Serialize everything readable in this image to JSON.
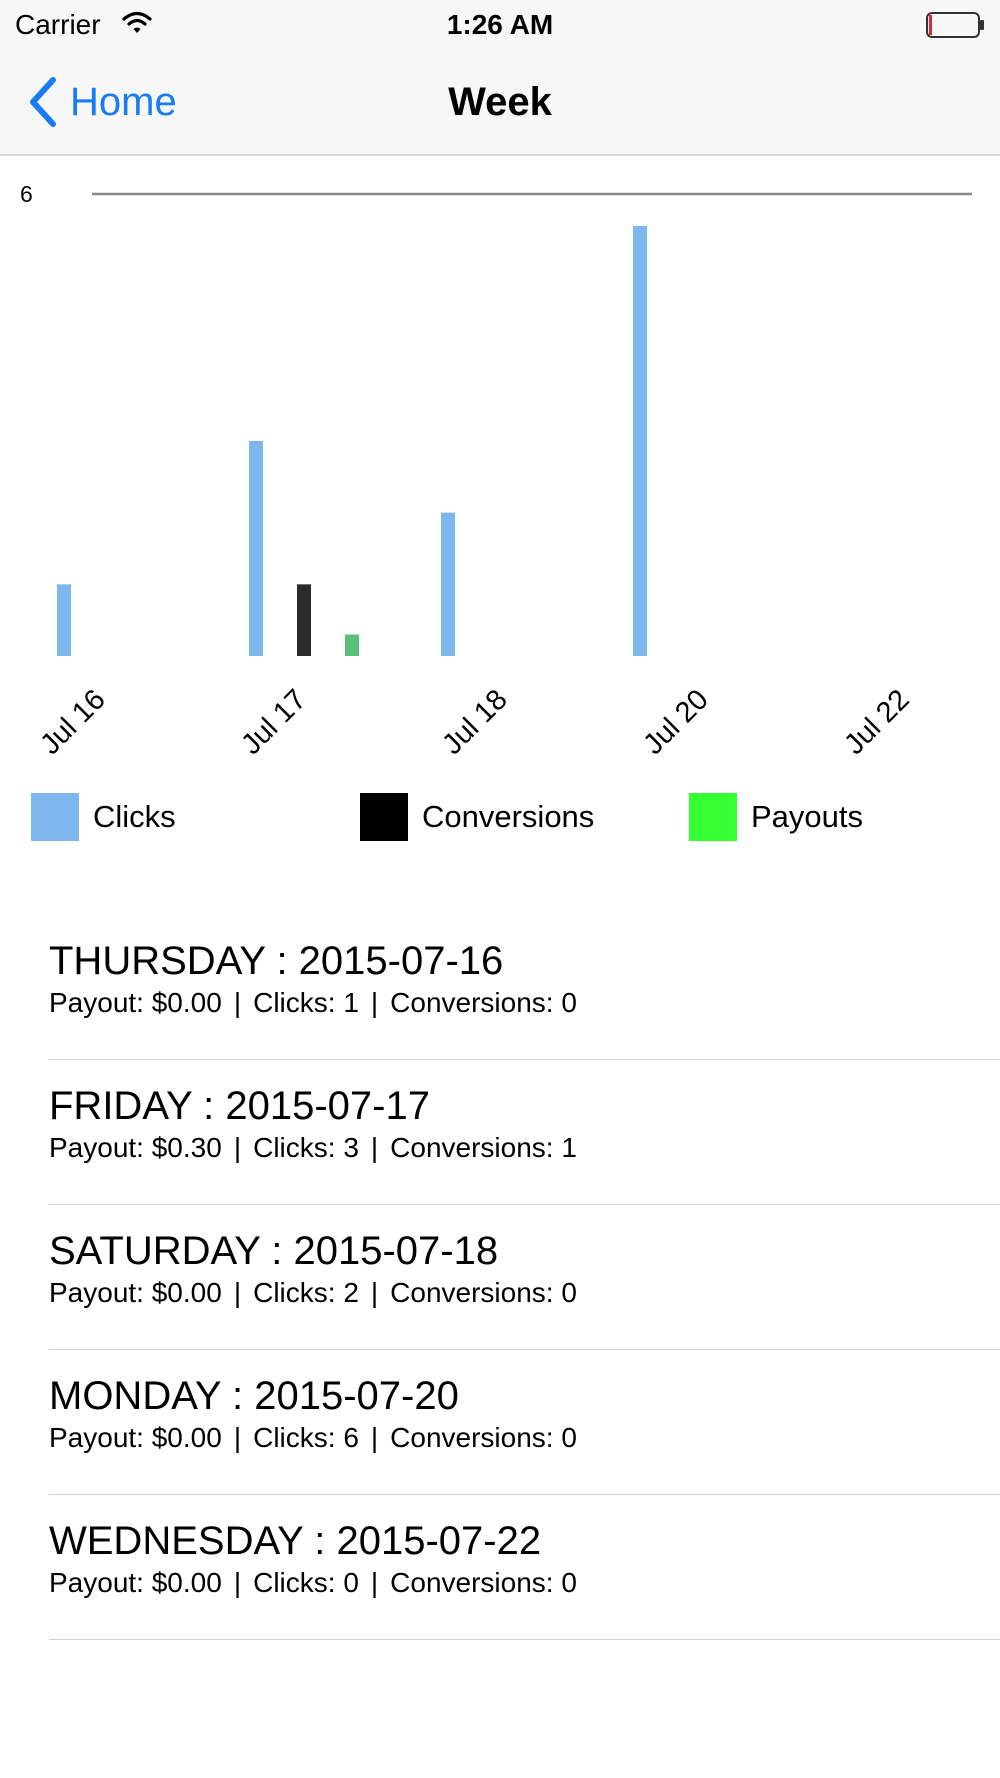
{
  "status_bar": {
    "carrier": "Carrier",
    "time": "1:26 AM"
  },
  "nav": {
    "back_label": "Home",
    "title": "Week"
  },
  "chart_data": {
    "type": "bar",
    "categories": [
      "Jul 16",
      "Jul 17",
      "Jul 18",
      "Jul 20",
      "Jul 22"
    ],
    "y_tick_labels": [
      "6"
    ],
    "ylim": [
      0,
      6
    ],
    "grid": false,
    "legend_position": "bottom",
    "series": [
      {
        "name": "Clicks",
        "color": "#7eb7ef",
        "values": [
          1,
          3,
          2,
          6,
          0
        ]
      },
      {
        "name": "Conversions",
        "color": "#2b2b2b",
        "values": [
          0,
          1,
          0,
          0,
          0
        ]
      },
      {
        "name": "Payouts",
        "color": "#5bbf7b",
        "values": [
          0,
          0.3,
          0,
          0,
          0
        ]
      }
    ]
  },
  "legend": [
    {
      "label": "Clicks",
      "color": "#7eb7ef"
    },
    {
      "label": "Conversions",
      "color": "#000000"
    },
    {
      "label": "Payouts",
      "color": "#33ff33"
    }
  ],
  "days": [
    {
      "title": "THURSDAY : 2015-07-16",
      "payout": "Payout: $0.00",
      "clicks": "Clicks: 1",
      "conversions": "Conversions: 0"
    },
    {
      "title": "FRIDAY : 2015-07-17",
      "payout": "Payout: $0.30",
      "clicks": "Clicks: 3",
      "conversions": "Conversions: 1"
    },
    {
      "title": "SATURDAY : 2015-07-18",
      "payout": "Payout: $0.00",
      "clicks": "Clicks: 2",
      "conversions": "Conversions: 0"
    },
    {
      "title": "MONDAY : 2015-07-20",
      "payout": "Payout: $0.00",
      "clicks": "Clicks: 6",
      "conversions": "Conversions: 0"
    },
    {
      "title": "WEDNESDAY : 2015-07-22",
      "payout": "Payout: $0.00",
      "clicks": "Clicks: 0",
      "conversions": "Conversions: 0"
    }
  ],
  "separator": "|"
}
